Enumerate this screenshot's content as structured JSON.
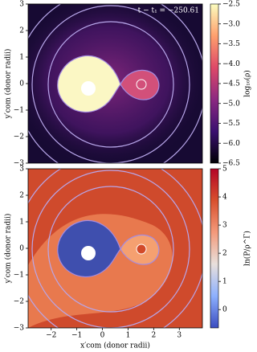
{
  "chart_data": [
    {
      "type": "heatmap",
      "annotation": "t − t₁ = −250.61",
      "ylabel": "y′com (donor radii)",
      "xlim": [
        -2.9,
        3.9
      ],
      "ylim": [
        -3,
        3
      ],
      "yticks": [
        {
          "value": -3,
          "label": "−3"
        },
        {
          "value": -2,
          "label": "−2"
        },
        {
          "value": -1,
          "label": "−1"
        },
        0,
        1,
        2,
        3
      ],
      "colorbar": {
        "label": "log₁₀(ρ)",
        "clim": [
          -6.5,
          -2.5
        ],
        "ticks": [
          {
            "value": -6.5,
            "label": "−6.5"
          },
          {
            "value": -6,
            "label": "−6.0"
          },
          {
            "value": -5.5,
            "label": "−5.5"
          },
          {
            "value": -5,
            "label": "−5.0"
          },
          {
            "value": -4.5,
            "label": "−4.5"
          },
          {
            "value": -4,
            "label": "−4.0"
          },
          {
            "value": -3.5,
            "label": "−3.5"
          },
          {
            "value": -3,
            "label": "−3.0"
          },
          {
            "value": -2.5,
            "label": "−2.5"
          }
        ],
        "colors": [
          "#000004",
          "#3b0f70",
          "#8c2981",
          "#de4968",
          "#fe9f6d",
          "#fcfdbf"
        ]
      }
    },
    {
      "type": "heatmap",
      "xlabel": "x′com (donor radii)",
      "ylabel": "y′com (donor radii)",
      "xlim": [
        -2.9,
        3.9
      ],
      "ylim": [
        -3,
        3
      ],
      "xticks": [
        {
          "value": -2,
          "label": "−2"
        },
        {
          "value": -1,
          "label": "−1"
        },
        0,
        1,
        2,
        3
      ],
      "yticks": [
        {
          "value": -3,
          "label": "−3"
        },
        {
          "value": -2,
          "label": "−2"
        },
        {
          "value": -1,
          "label": "−1"
        },
        0,
        1,
        2,
        3
      ],
      "colorbar": {
        "label": "ln(P/ρ^Γ)",
        "clim": [
          -0.65,
          5
        ],
        "ticks": [
          0,
          1,
          2,
          3,
          4,
          5
        ],
        "colors": [
          "#3b4cc0",
          "#8db0fe",
          "#e8e0dc",
          "#f49a7b",
          "#d8502e",
          "#b40426"
        ]
      }
    }
  ]
}
